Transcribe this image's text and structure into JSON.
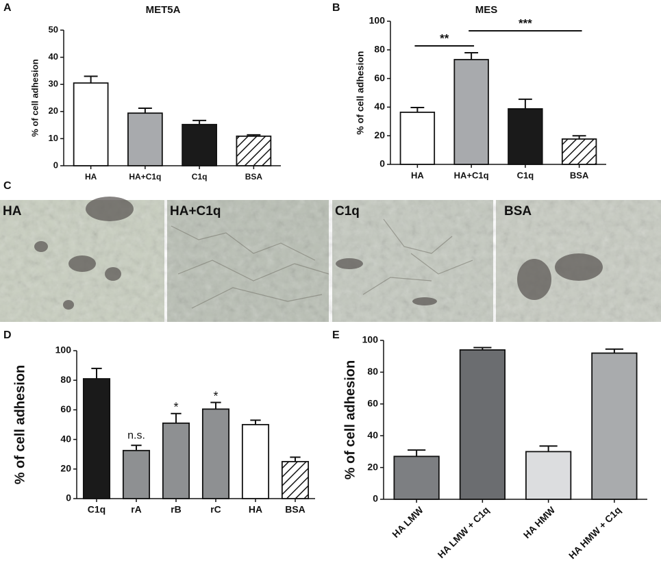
{
  "chart_data": [
    {
      "type": "bar",
      "panel": "A",
      "title": "MET5A",
      "y_label": "% of cell adhesion",
      "categories": [
        "HA",
        "HA+C1q",
        "C1q",
        "BSA"
      ],
      "values": [
        30.5,
        19.4,
        15.2,
        10.9
      ],
      "errors": [
        2.5,
        1.8,
        1.5,
        0.5
      ],
      "colors": [
        "#ffffff",
        "#a8aaad",
        "#1a1a1a",
        "#ffffff"
      ],
      "hatched": [
        false,
        false,
        false,
        true
      ],
      "ylim": [
        0,
        50
      ],
      "yticks": [
        0,
        10,
        20,
        30,
        40,
        50
      ]
    },
    {
      "type": "bar",
      "panel": "B",
      "title": "MES",
      "y_label": "% of cell adhesion",
      "categories": [
        "HA",
        "HA+C1q",
        "C1q",
        "BSA"
      ],
      "values": [
        36.4,
        73.2,
        38.8,
        17.7
      ],
      "errors": [
        3.3,
        4.8,
        6.7,
        2.3
      ],
      "colors": [
        "#ffffff",
        "#a8aaad",
        "#1a1a1a",
        "#ffffff"
      ],
      "hatched": [
        false,
        false,
        false,
        true
      ],
      "brackets": [
        {
          "label": "**",
          "from": 0,
          "to": 1
        },
        {
          "label": "***",
          "from": 1,
          "to": 3
        }
      ],
      "ylim": [
        0,
        100
      ],
      "yticks": [
        0,
        20,
        40,
        60,
        80,
        100
      ]
    },
    {
      "type": "bar",
      "panel": "D",
      "y_label": "% of cell adhesion",
      "categories": [
        "C1q",
        "rA",
        "rB",
        "rC",
        "HA",
        "BSA"
      ],
      "values": [
        81,
        32.5,
        51,
        60.5,
        50,
        25
      ],
      "errors": [
        7,
        3.5,
        6.5,
        4.5,
        3,
        3
      ],
      "colors": [
        "#1a1a1a",
        "#8e9092",
        "#8e9092",
        "#8e9092",
        "#ffffff",
        "#ffffff"
      ],
      "hatched": [
        false,
        false,
        false,
        false,
        false,
        true
      ],
      "annotations": [
        null,
        "n.s.",
        "*",
        "*",
        null,
        null
      ],
      "ylim": [
        0,
        100
      ],
      "yticks": [
        0,
        20,
        40,
        60,
        80,
        100
      ]
    },
    {
      "type": "bar",
      "panel": "E",
      "y_label": "% of cell adhesion",
      "categories": [
        "HA LMW",
        "HA LMW + C1q",
        "HA HMW",
        "HA HMW + C1q"
      ],
      "values": [
        27,
        94,
        30,
        92
      ],
      "errors": [
        4,
        1.5,
        3.5,
        2.5
      ],
      "colors": [
        "#7d7f82",
        "#6b6d70",
        "#dcdddf",
        "#a9abad"
      ],
      "hatched": [
        false,
        false,
        false,
        false
      ],
      "ylim": [
        0,
        100
      ],
      "yticks": [
        0,
        20,
        40,
        60,
        80,
        100
      ]
    }
  ],
  "panel_c": {
    "panel": "C",
    "labels": [
      "HA",
      "HA+C1q",
      "C1q",
      "BSA"
    ]
  }
}
